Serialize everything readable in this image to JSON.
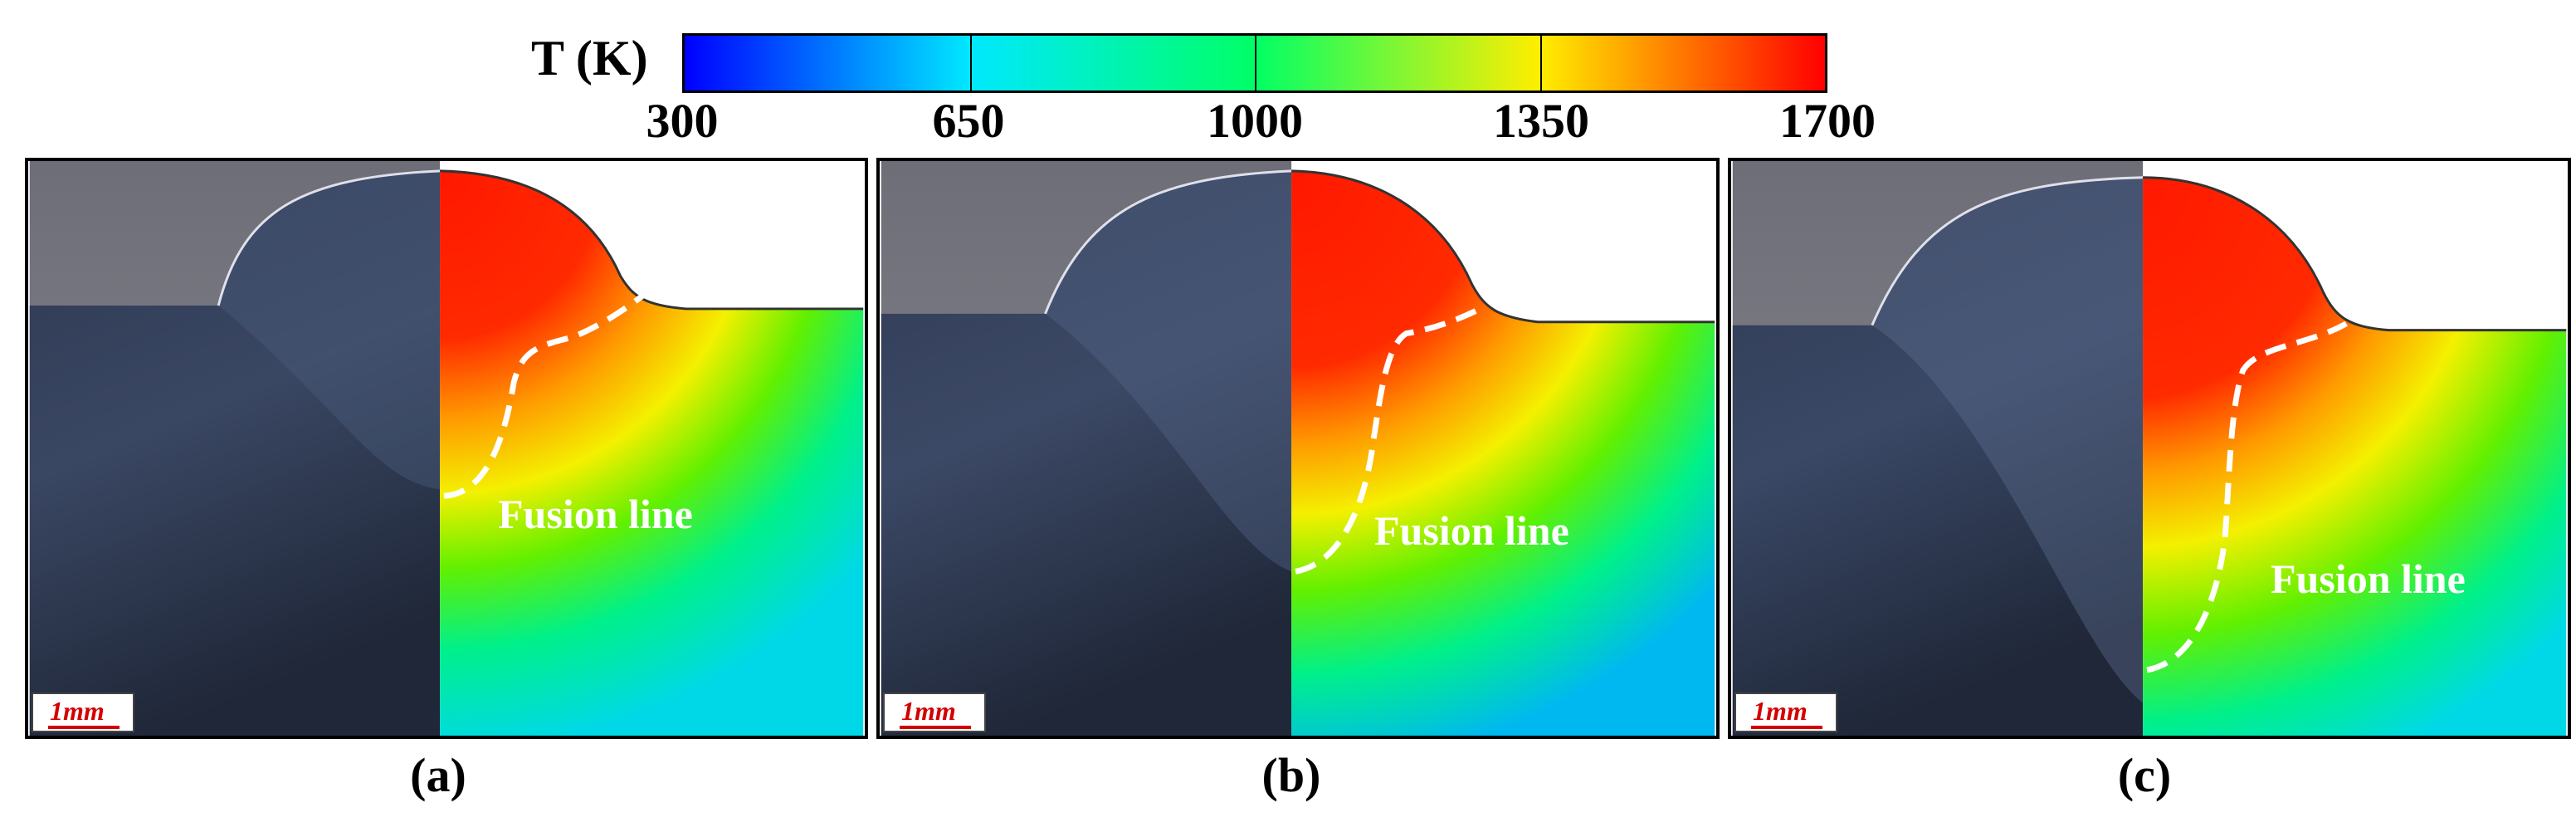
{
  "colorbar": {
    "title": "T (K)",
    "ticks": [
      "300",
      "650",
      "1000",
      "1350",
      "1700"
    ],
    "colors": [
      "#0000ff",
      "#00e8ff",
      "#00ff66",
      "#ffee00",
      "#ff0000"
    ]
  },
  "panels": [
    {
      "label": "(a)",
      "fusion_label": "Fusion line",
      "scale_bar": "1mm"
    },
    {
      "label": "(b)",
      "fusion_label": "Fusion line",
      "scale_bar": "1mm"
    },
    {
      "label": "(c)",
      "fusion_label": "Fusion line",
      "scale_bar": "1mm"
    }
  ]
}
